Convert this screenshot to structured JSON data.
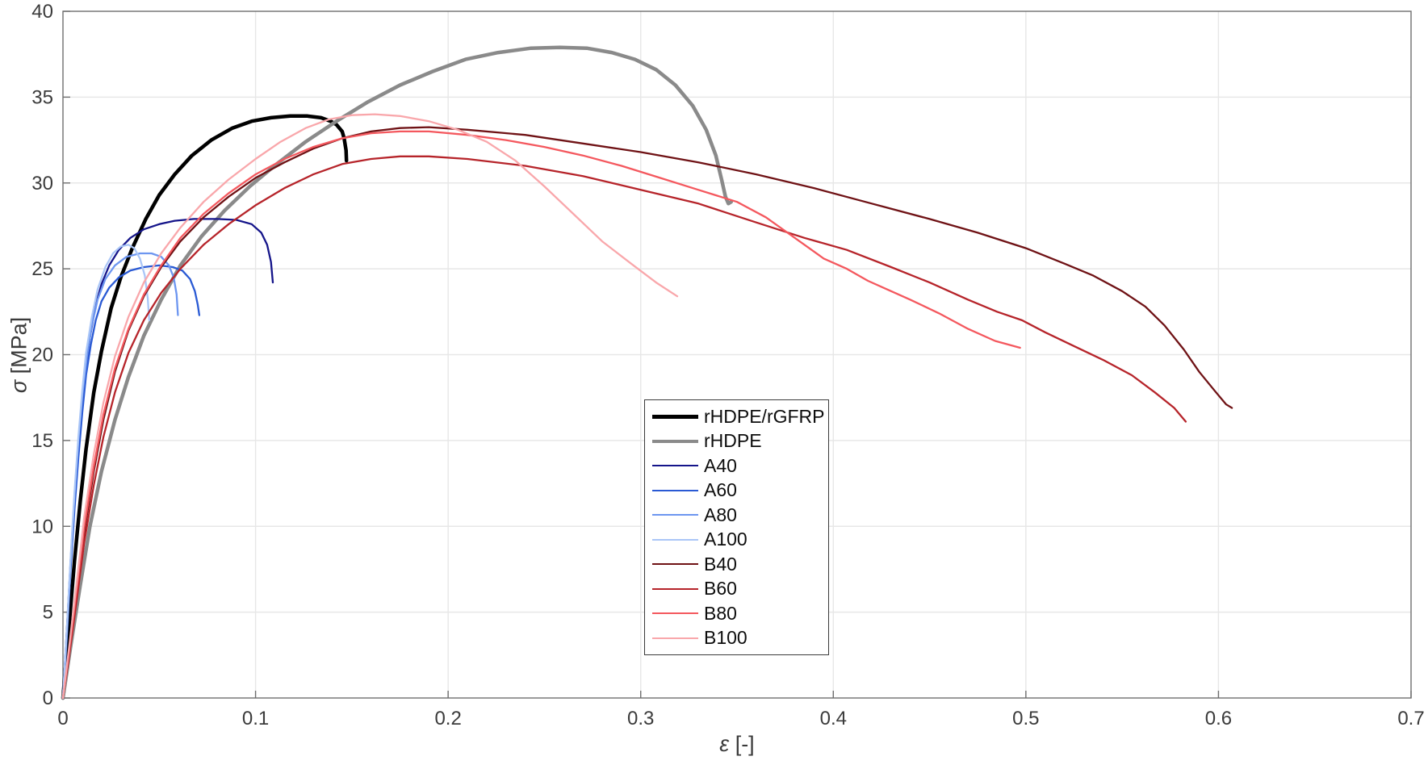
{
  "figure": {
    "background": "#ffffff",
    "axis_color": "#6e6e6e",
    "grid_color": "#e7e7e7",
    "tick_label_color": "#3b3b3b"
  },
  "chart_data": {
    "type": "line",
    "title": "",
    "xlabel_symbol": "ε",
    "xlabel_unit": "[-]",
    "ylabel_symbol": "σ",
    "ylabel_unit": "[MPa]",
    "xlim": [
      0,
      0.7
    ],
    "ylim": [
      0,
      40
    ],
    "xticks": [
      0,
      0.1,
      0.2,
      0.3,
      0.4,
      0.5,
      0.6,
      0.7
    ],
    "xtick_labels": [
      "0",
      "0.1",
      "0.2",
      "0.3",
      "0.4",
      "0.5",
      "0.6",
      "0.7"
    ],
    "yticks": [
      0,
      5,
      10,
      15,
      20,
      25,
      30,
      35,
      40
    ],
    "ytick_labels": [
      "0",
      "5",
      "10",
      "15",
      "20",
      "25",
      "30",
      "35",
      "40"
    ],
    "grid": true,
    "legend_position": "inside lower-center",
    "series": [
      {
        "name": "rHDPE/rGFRP",
        "color": "#000000",
        "line_width": 4.5,
        "points": [
          [
            0,
            0
          ],
          [
            0.003,
            4
          ],
          [
            0.006,
            8
          ],
          [
            0.009,
            11.5
          ],
          [
            0.012,
            14.5
          ],
          [
            0.016,
            17.8
          ],
          [
            0.02,
            20.2
          ],
          [
            0.025,
            22.7
          ],
          [
            0.03,
            24.5
          ],
          [
            0.036,
            26.2
          ],
          [
            0.043,
            27.9
          ],
          [
            0.05,
            29.3
          ],
          [
            0.058,
            30.5
          ],
          [
            0.067,
            31.6
          ],
          [
            0.077,
            32.5
          ],
          [
            0.088,
            33.2
          ],
          [
            0.098,
            33.6
          ],
          [
            0.108,
            33.8
          ],
          [
            0.118,
            33.9
          ],
          [
            0.127,
            33.9
          ],
          [
            0.134,
            33.8
          ],
          [
            0.139,
            33.6
          ],
          [
            0.142,
            33.4
          ],
          [
            0.145,
            33.0
          ],
          [
            0.146,
            32.6
          ],
          [
            0.147,
            31.9
          ],
          [
            0.1472,
            31.3
          ]
        ]
      },
      {
        "name": "rHDPE",
        "color": "#8a8a8a",
        "line_width": 4.5,
        "points": [
          [
            0,
            0
          ],
          [
            0.004,
            3
          ],
          [
            0.009,
            6.6
          ],
          [
            0.014,
            10
          ],
          [
            0.02,
            13.2
          ],
          [
            0.027,
            16.2
          ],
          [
            0.034,
            18.7
          ],
          [
            0.042,
            21.1
          ],
          [
            0.051,
            23.2
          ],
          [
            0.061,
            25.2
          ],
          [
            0.072,
            26.9
          ],
          [
            0.084,
            28.4
          ],
          [
            0.097,
            29.8
          ],
          [
            0.111,
            31.1
          ],
          [
            0.126,
            32.4
          ],
          [
            0.142,
            33.6
          ],
          [
            0.158,
            34.7
          ],
          [
            0.175,
            35.7
          ],
          [
            0.192,
            36.5
          ],
          [
            0.209,
            37.2
          ],
          [
            0.226,
            37.6
          ],
          [
            0.243,
            37.85
          ],
          [
            0.258,
            37.9
          ],
          [
            0.272,
            37.85
          ],
          [
            0.285,
            37.6
          ],
          [
            0.297,
            37.2
          ],
          [
            0.308,
            36.6
          ],
          [
            0.318,
            35.7
          ],
          [
            0.327,
            34.5
          ],
          [
            0.334,
            33.1
          ],
          [
            0.339,
            31.6
          ],
          [
            0.342,
            30.2
          ],
          [
            0.344,
            29.2
          ],
          [
            0.3455,
            28.8
          ],
          [
            0.347,
            28.9
          ]
        ]
      },
      {
        "name": "A40",
        "color": "#15158a",
        "line_width": 2.3,
        "points": [
          [
            0,
            0
          ],
          [
            0.002,
            4
          ],
          [
            0.004,
            8
          ],
          [
            0.006,
            11.5
          ],
          [
            0.008,
            14.5
          ],
          [
            0.01,
            17
          ],
          [
            0.012,
            19.2
          ],
          [
            0.014,
            21
          ],
          [
            0.017,
            22.9
          ],
          [
            0.02,
            24.1
          ],
          [
            0.024,
            25.2
          ],
          [
            0.029,
            26.1
          ],
          [
            0.035,
            26.8
          ],
          [
            0.042,
            27.3
          ],
          [
            0.05,
            27.6
          ],
          [
            0.058,
            27.8
          ],
          [
            0.068,
            27.9
          ],
          [
            0.08,
            27.9
          ],
          [
            0.09,
            27.85
          ],
          [
            0.098,
            27.6
          ],
          [
            0.103,
            27.1
          ],
          [
            0.106,
            26.4
          ],
          [
            0.108,
            25.4
          ],
          [
            0.109,
            24.2
          ]
        ]
      },
      {
        "name": "A60",
        "color": "#2a5ad4",
        "line_width": 2.3,
        "points": [
          [
            0,
            0
          ],
          [
            0.002,
            3.5
          ],
          [
            0.004,
            7.5
          ],
          [
            0.006,
            11
          ],
          [
            0.008,
            14
          ],
          [
            0.01,
            16.6
          ],
          [
            0.012,
            18.8
          ],
          [
            0.0145,
            20.6
          ],
          [
            0.017,
            22
          ],
          [
            0.02,
            23.1
          ],
          [
            0.024,
            23.9
          ],
          [
            0.029,
            24.5
          ],
          [
            0.035,
            24.9
          ],
          [
            0.042,
            25.1
          ],
          [
            0.05,
            25.2
          ],
          [
            0.057,
            25.1
          ],
          [
            0.062,
            24.9
          ],
          [
            0.066,
            24.4
          ],
          [
            0.0685,
            23.7
          ],
          [
            0.07,
            22.9
          ],
          [
            0.0708,
            22.3
          ]
        ]
      },
      {
        "name": "A80",
        "color": "#6d96f0",
        "line_width": 2.3,
        "points": [
          [
            0,
            0
          ],
          [
            0.002,
            3.8
          ],
          [
            0.004,
            8
          ],
          [
            0.006,
            11.8
          ],
          [
            0.008,
            15
          ],
          [
            0.01,
            17.6
          ],
          [
            0.0125,
            19.9
          ],
          [
            0.015,
            21.7
          ],
          [
            0.018,
            23.2
          ],
          [
            0.022,
            24.4
          ],
          [
            0.027,
            25.2
          ],
          [
            0.033,
            25.7
          ],
          [
            0.04,
            25.9
          ],
          [
            0.046,
            25.9
          ],
          [
            0.051,
            25.7
          ],
          [
            0.055,
            25.2
          ],
          [
            0.0575,
            24.5
          ],
          [
            0.059,
            23.5
          ],
          [
            0.0597,
            22.3
          ]
        ]
      },
      {
        "name": "A100",
        "color": "#aac6f7",
        "line_width": 2.3,
        "points": [
          [
            0,
            0
          ],
          [
            0.002,
            4
          ],
          [
            0.004,
            8.2
          ],
          [
            0.006,
            12
          ],
          [
            0.008,
            15.2
          ],
          [
            0.01,
            17.9
          ],
          [
            0.012,
            20.1
          ],
          [
            0.015,
            22.2
          ],
          [
            0.018,
            23.8
          ],
          [
            0.022,
            25.1
          ],
          [
            0.026,
            25.9
          ],
          [
            0.03,
            26.3
          ],
          [
            0.034,
            26.4
          ],
          [
            0.037,
            26.2
          ],
          [
            0.04,
            25.6
          ],
          [
            0.0425,
            24.6
          ],
          [
            0.044,
            23.3
          ],
          [
            0.0448,
            22.0
          ]
        ]
      },
      {
        "name": "B40",
        "color": "#6f1215",
        "line_width": 2.3,
        "points": [
          [
            0,
            0
          ],
          [
            0.003,
            2.5
          ],
          [
            0.007,
            6
          ],
          [
            0.011,
            9.6
          ],
          [
            0.016,
            13.2
          ],
          [
            0.021,
            16.2
          ],
          [
            0.027,
            19
          ],
          [
            0.034,
            21.4
          ],
          [
            0.042,
            23.4
          ],
          [
            0.051,
            25.1
          ],
          [
            0.061,
            26.6
          ],
          [
            0.073,
            28
          ],
          [
            0.086,
            29.2
          ],
          [
            0.1,
            30.3
          ],
          [
            0.115,
            31.2
          ],
          [
            0.13,
            32
          ],
          [
            0.145,
            32.6
          ],
          [
            0.16,
            33
          ],
          [
            0.175,
            33.2
          ],
          [
            0.19,
            33.25
          ],
          [
            0.21,
            33.1
          ],
          [
            0.24,
            32.8
          ],
          [
            0.27,
            32.3
          ],
          [
            0.3,
            31.8
          ],
          [
            0.33,
            31.2
          ],
          [
            0.36,
            30.5
          ],
          [
            0.39,
            29.7
          ],
          [
            0.42,
            28.8
          ],
          [
            0.45,
            27.9
          ],
          [
            0.475,
            27.1
          ],
          [
            0.5,
            26.2
          ],
          [
            0.52,
            25.3
          ],
          [
            0.535,
            24.6
          ],
          [
            0.55,
            23.7
          ],
          [
            0.562,
            22.8
          ],
          [
            0.572,
            21.7
          ],
          [
            0.582,
            20.3
          ],
          [
            0.59,
            19
          ],
          [
            0.598,
            17.9
          ],
          [
            0.604,
            17.1
          ],
          [
            0.607,
            16.9
          ]
        ]
      },
      {
        "name": "B60",
        "color": "#b6242a",
        "line_width": 2.3,
        "points": [
          [
            0,
            0
          ],
          [
            0.003,
            2.3
          ],
          [
            0.007,
            5.6
          ],
          [
            0.011,
            9
          ],
          [
            0.016,
            12.4
          ],
          [
            0.021,
            15.2
          ],
          [
            0.027,
            17.8
          ],
          [
            0.034,
            20.1
          ],
          [
            0.042,
            22
          ],
          [
            0.051,
            23.6
          ],
          [
            0.061,
            25
          ],
          [
            0.073,
            26.4
          ],
          [
            0.086,
            27.6
          ],
          [
            0.1,
            28.7
          ],
          [
            0.115,
            29.7
          ],
          [
            0.13,
            30.5
          ],
          [
            0.145,
            31.1
          ],
          [
            0.16,
            31.4
          ],
          [
            0.175,
            31.55
          ],
          [
            0.19,
            31.55
          ],
          [
            0.21,
            31.4
          ],
          [
            0.24,
            31
          ],
          [
            0.27,
            30.4
          ],
          [
            0.3,
            29.6
          ],
          [
            0.33,
            28.8
          ],
          [
            0.36,
            27.7
          ],
          [
            0.385,
            26.8
          ],
          [
            0.407,
            26.1
          ],
          [
            0.43,
            25.1
          ],
          [
            0.45,
            24.2
          ],
          [
            0.47,
            23.2
          ],
          [
            0.485,
            22.5
          ],
          [
            0.498,
            22.0
          ],
          [
            0.51,
            21.3
          ],
          [
            0.525,
            20.5
          ],
          [
            0.54,
            19.7
          ],
          [
            0.555,
            18.8
          ],
          [
            0.567,
            17.8
          ],
          [
            0.577,
            16.9
          ],
          [
            0.583,
            16.1
          ]
        ]
      },
      {
        "name": "B80",
        "color": "#f4585e",
        "line_width": 2.3,
        "points": [
          [
            0,
            0
          ],
          [
            0.003,
            2.6
          ],
          [
            0.007,
            6.2
          ],
          [
            0.011,
            9.9
          ],
          [
            0.016,
            13.5
          ],
          [
            0.021,
            16.5
          ],
          [
            0.027,
            19.2
          ],
          [
            0.034,
            21.5
          ],
          [
            0.042,
            23.5
          ],
          [
            0.051,
            25.2
          ],
          [
            0.061,
            26.8
          ],
          [
            0.073,
            28.2
          ],
          [
            0.086,
            29.4
          ],
          [
            0.1,
            30.5
          ],
          [
            0.115,
            31.4
          ],
          [
            0.13,
            32.1
          ],
          [
            0.145,
            32.6
          ],
          [
            0.16,
            32.9
          ],
          [
            0.175,
            33.0
          ],
          [
            0.19,
            33.0
          ],
          [
            0.21,
            32.8
          ],
          [
            0.23,
            32.5
          ],
          [
            0.25,
            32.1
          ],
          [
            0.27,
            31.6
          ],
          [
            0.29,
            31
          ],
          [
            0.31,
            30.3
          ],
          [
            0.33,
            29.6
          ],
          [
            0.35,
            28.9
          ],
          [
            0.365,
            28
          ],
          [
            0.38,
            26.8
          ],
          [
            0.395,
            25.6
          ],
          [
            0.407,
            25
          ],
          [
            0.418,
            24.3
          ],
          [
            0.428,
            23.8
          ],
          [
            0.44,
            23.2
          ],
          [
            0.455,
            22.4
          ],
          [
            0.47,
            21.5
          ],
          [
            0.484,
            20.8
          ],
          [
            0.497,
            20.4
          ]
        ]
      },
      {
        "name": "B100",
        "color": "#f9a7ab",
        "line_width": 2.3,
        "points": [
          [
            0,
            0
          ],
          [
            0.003,
            2.8
          ],
          [
            0.007,
            6.6
          ],
          [
            0.011,
            10.5
          ],
          [
            0.016,
            14.2
          ],
          [
            0.021,
            17.2
          ],
          [
            0.027,
            19.9
          ],
          [
            0.034,
            22.2
          ],
          [
            0.042,
            24.2
          ],
          [
            0.051,
            25.9
          ],
          [
            0.061,
            27.4
          ],
          [
            0.073,
            28.9
          ],
          [
            0.086,
            30.2
          ],
          [
            0.1,
            31.4
          ],
          [
            0.113,
            32.4
          ],
          [
            0.126,
            33.2
          ],
          [
            0.138,
            33.7
          ],
          [
            0.15,
            33.95
          ],
          [
            0.162,
            34.0
          ],
          [
            0.175,
            33.9
          ],
          [
            0.19,
            33.6
          ],
          [
            0.205,
            33.1
          ],
          [
            0.22,
            32.4
          ],
          [
            0.235,
            31.3
          ],
          [
            0.25,
            29.8
          ],
          [
            0.265,
            28.2
          ],
          [
            0.28,
            26.6
          ],
          [
            0.295,
            25.3
          ],
          [
            0.308,
            24.2
          ],
          [
            0.319,
            23.4
          ]
        ]
      }
    ]
  }
}
